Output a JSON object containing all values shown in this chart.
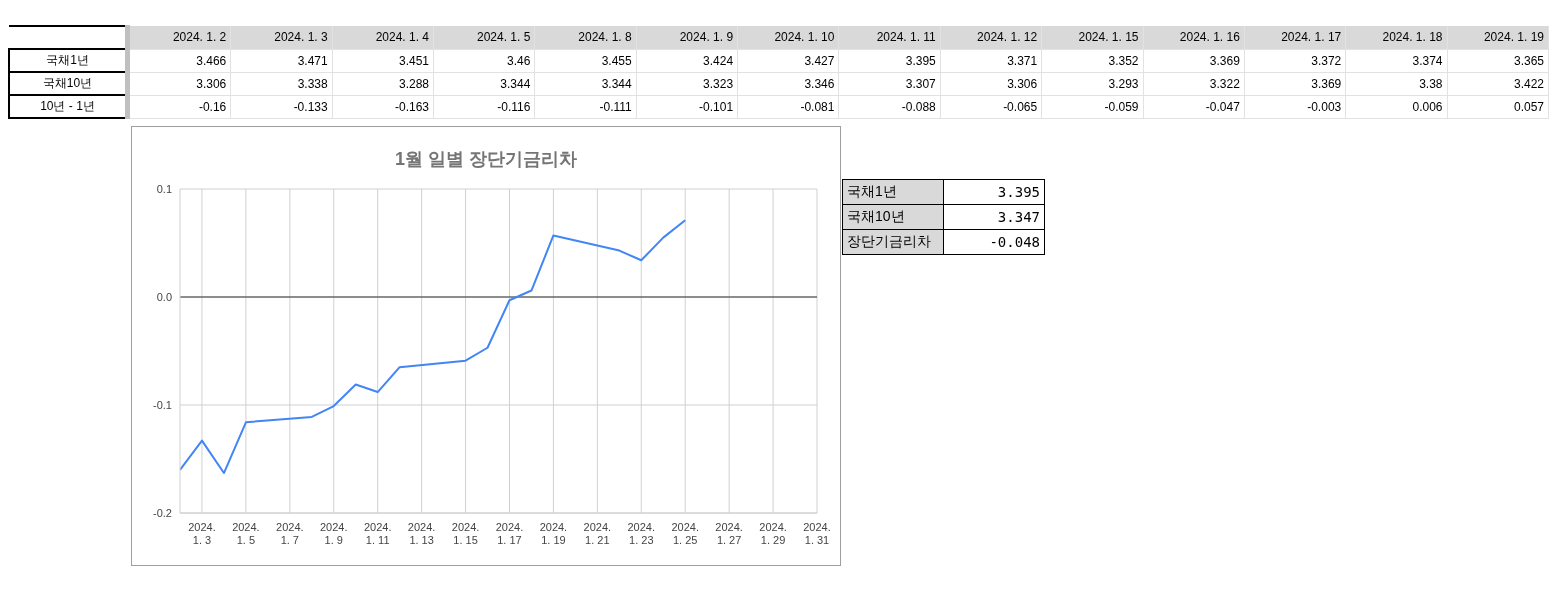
{
  "chart_data": [
    {
      "type": "other",
      "categories": [
        "2024. 1. 2",
        "2024. 1. 3",
        "2024. 1. 4",
        "2024. 1. 5",
        "2024. 1. 8",
        "2024. 1. 9",
        "2024. 1. 10",
        "2024. 1. 11",
        "2024. 1. 12",
        "2024. 1. 15",
        "2024. 1. 16",
        "2024. 1. 17",
        "2024. 1. 18",
        "2024. 1. 19"
      ],
      "series": [
        {
          "name": "국채1년",
          "values": [
            3.466,
            3.471,
            3.451,
            3.46,
            3.455,
            3.424,
            3.427,
            3.395,
            3.371,
            3.352,
            3.369,
            3.372,
            3.374,
            3.365
          ]
        },
        {
          "name": "국채10년",
          "values": [
            3.306,
            3.338,
            3.288,
            3.344,
            3.344,
            3.323,
            3.346,
            3.307,
            3.306,
            3.293,
            3.322,
            3.369,
            3.38,
            3.422
          ]
        },
        {
          "name": "10년 - 1년",
          "values": [
            -0.16,
            -0.133,
            -0.163,
            -0.116,
            -0.111,
            -0.101,
            -0.081,
            -0.088,
            -0.065,
            -0.059,
            -0.047,
            -0.003,
            0.006,
            0.057
          ]
        }
      ],
      "data_labels": true
    },
    {
      "type": "line",
      "title": "1월 일별 장단기금리차",
      "x": [
        "2024-01-02",
        "2024-01-03",
        "2024-01-04",
        "2024-01-05",
        "2024-01-08",
        "2024-01-09",
        "2024-01-10",
        "2024-01-11",
        "2024-01-12",
        "2024-01-15",
        "2024-01-16",
        "2024-01-17",
        "2024-01-18",
        "2024-01-19",
        "2024-01-22",
        "2024-01-23",
        "2024-01-24",
        "2024-01-25"
      ],
      "series": [
        {
          "color": "#4285f4",
          "values": [
            -0.16,
            -0.133,
            -0.163,
            -0.116,
            -0.111,
            -0.101,
            -0.081,
            -0.088,
            -0.065,
            -0.059,
            -0.047,
            -0.003,
            0.006,
            0.057,
            0.043,
            0.034,
            0.055,
            0.071
          ]
        }
      ],
      "xlim": [
        "2024-01-02",
        "2024-01-31"
      ],
      "xticks": [
        {
          "value": "2024-01-03",
          "label": "2024. 1. 3"
        },
        {
          "value": "2024-01-05",
          "label": "2024. 1. 5"
        },
        {
          "value": "2024-01-07",
          "label": "2024. 1. 7"
        },
        {
          "value": "2024-01-09",
          "label": "2024. 1. 9"
        },
        {
          "value": "2024-01-11",
          "label": "2024. 1. 11"
        },
        {
          "value": "2024-01-13",
          "label": "2024. 1. 13"
        },
        {
          "value": "2024-01-15",
          "label": "2024. 1. 15"
        },
        {
          "value": "2024-01-17",
          "label": "2024. 1. 17"
        },
        {
          "value": "2024-01-19",
          "label": "2024. 1. 19"
        },
        {
          "value": "2024-01-21",
          "label": "2024. 1. 21"
        },
        {
          "value": "2024-01-23",
          "label": "2024. 1. 23"
        },
        {
          "value": "2024-01-25",
          "label": "2024. 1. 25"
        },
        {
          "value": "2024-01-27",
          "label": "2024. 1. 27"
        },
        {
          "value": "2024-01-29",
          "label": "2024. 1. 29"
        },
        {
          "value": "2024-01-31",
          "label": "2024. 1. 31"
        }
      ],
      "ylim": [
        -0.2,
        0.1
      ],
      "yticks": [
        {
          "value": -0.2,
          "label": "-0.2"
        },
        {
          "value": -0.1,
          "label": "-0.1"
        },
        {
          "value": 0,
          "label": "0.0"
        },
        {
          "value": 0.1,
          "label": "0.1"
        }
      ],
      "ref_lines": [
        {
          "axis": "y",
          "value": 0,
          "color": "#333333"
        }
      ],
      "grid": true,
      "legend": false,
      "marker": "none",
      "line_style": "solid"
    },
    {
      "type": "other",
      "categories": [
        "국채1년",
        "국채10년",
        "장단기금리차"
      ],
      "values": [
        3.395,
        3.347,
        -0.048
      ],
      "data_labels": true
    }
  ]
}
